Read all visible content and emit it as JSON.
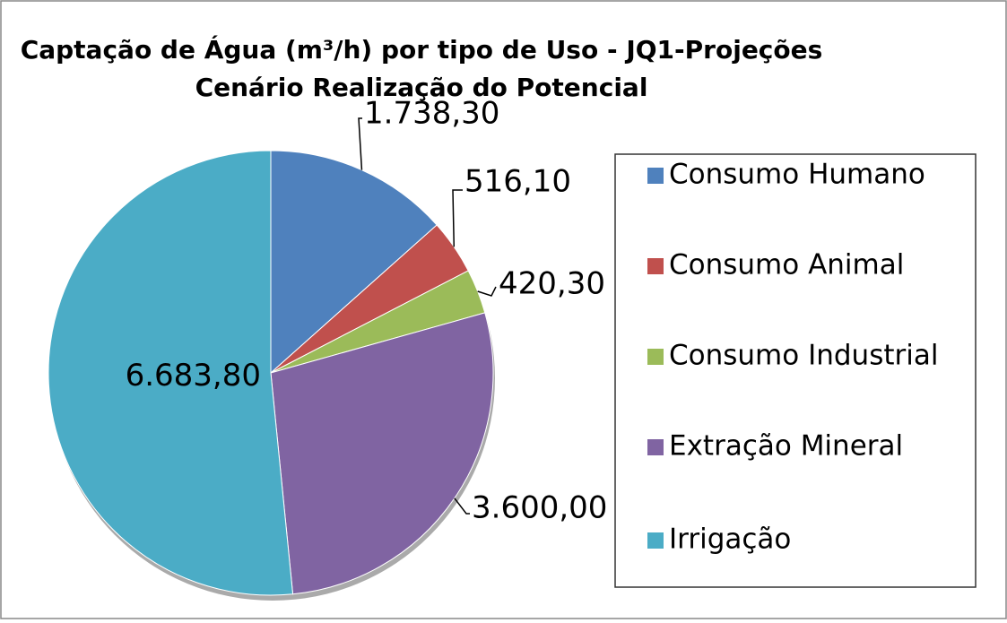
{
  "chart_data": {
    "type": "pie",
    "title": "Captação de Água (m³/h) por tipo de Uso - JQ1-Projeções",
    "subtitle": "Cenário Realização do Potencial",
    "categories": [
      "Consumo Humano",
      "Consumo Animal",
      "Consumo Industrial",
      "Extração Mineral",
      "Irrigação"
    ],
    "values": [
      1738.3,
      516.1,
      420.3,
      3600.0,
      6683.8
    ],
    "value_labels": [
      "1.738,30",
      "516,10",
      "420,30",
      "3.600,00",
      "6.683,80"
    ],
    "colors": [
      "#4f81bd",
      "#c0504d",
      "#9bbb59",
      "#8064a2",
      "#4bacc6"
    ],
    "legend": "right"
  }
}
